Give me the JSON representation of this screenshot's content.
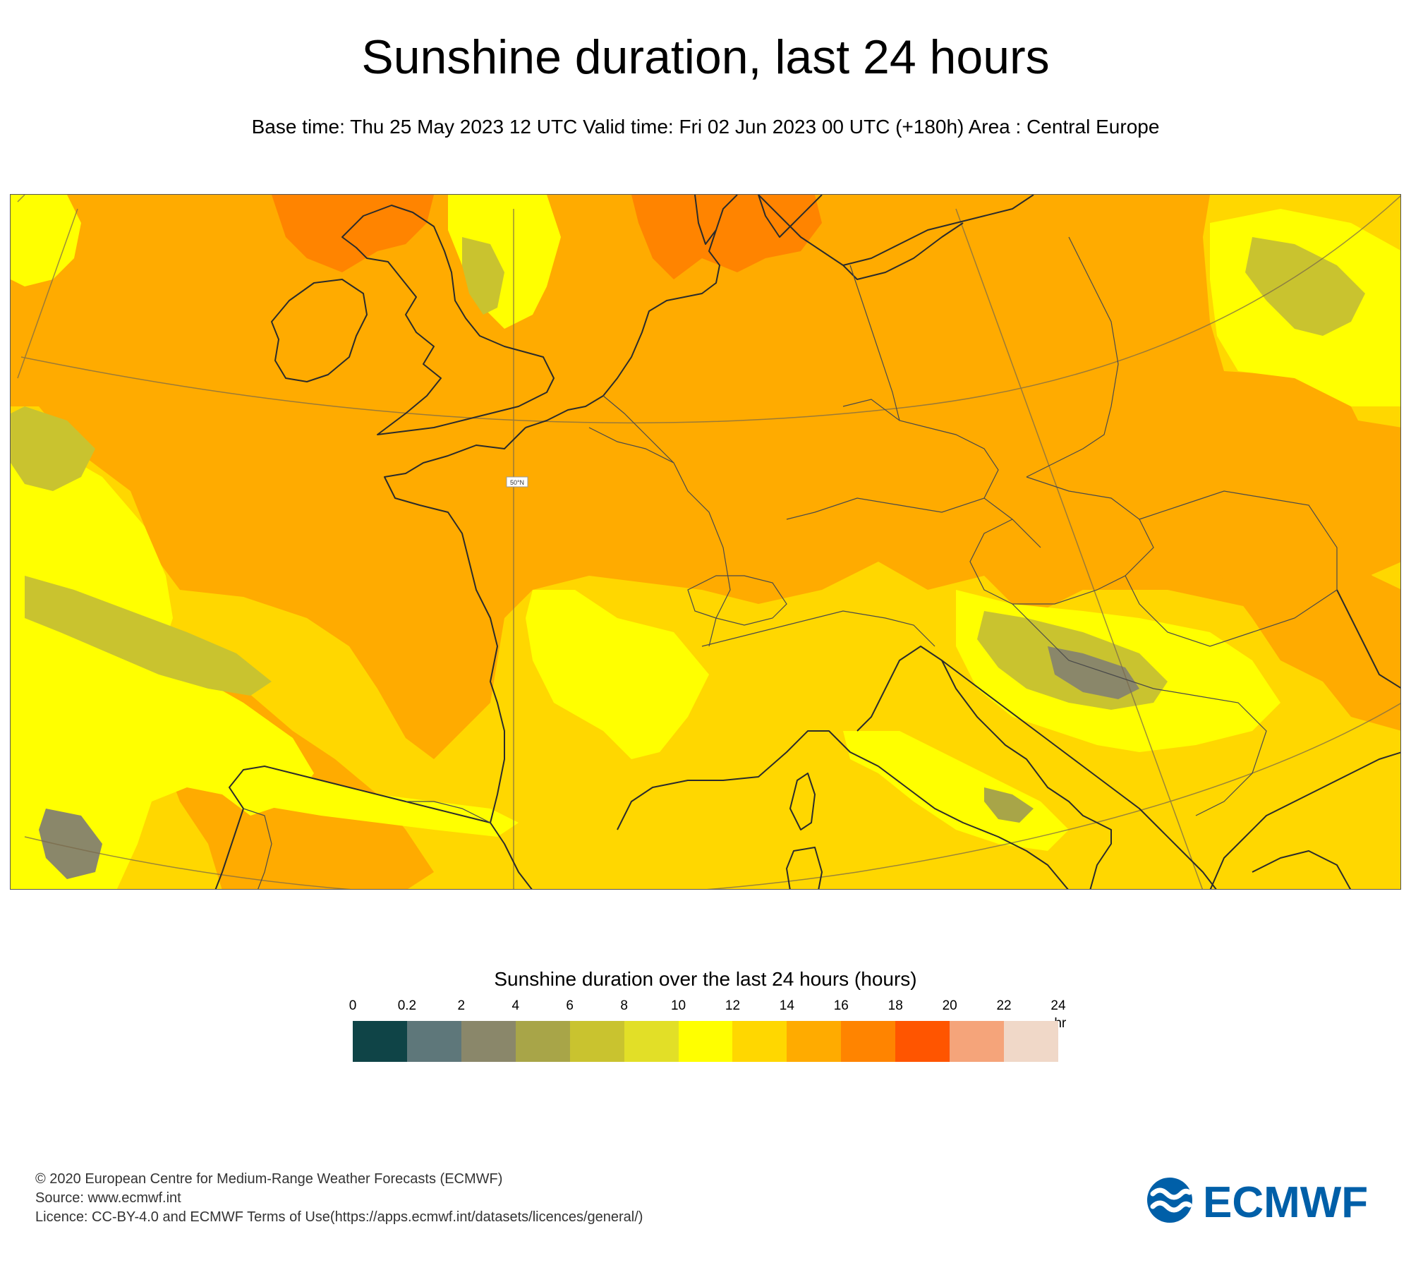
{
  "header": {
    "title": "Sunshine duration, last 24 hours",
    "subtitle": "Base time: Thu 25 May 2023 12 UTC Valid time: Fri 02 Jun 2023 00 UTC (+180h) Area : Central Europe"
  },
  "map": {
    "graticule_label": "50°N"
  },
  "legend": {
    "title": "Sunshine duration over the last 24 hours (hours)",
    "ticks": [
      "0",
      "0.2",
      "2",
      "4",
      "6",
      "8",
      "10",
      "12",
      "14",
      "16",
      "18",
      "20",
      "22",
      "24"
    ],
    "unit": "-hr",
    "colors": [
      "#0f4447",
      "#5e777a",
      "#8a876a",
      "#a8a548",
      "#c9c32f",
      "#e2df27",
      "#ffff00",
      "#ffd700",
      "#ffab00",
      "#ff8400",
      "#ff5500",
      "#f5a47a",
      "#f0d8c8"
    ]
  },
  "footer": {
    "line1": "© 2020 European Centre for Medium-Range Weather Forecasts (ECMWF)",
    "line2": "Source: www.ecmwf.int",
    "line3": "Licence: CC-BY-4.0 and ECMWF Terms of Use(https://apps.ecmwf.int/datasets/licences/general/)"
  },
  "logo": {
    "text": "ECMWF",
    "color": "#005fa8"
  }
}
